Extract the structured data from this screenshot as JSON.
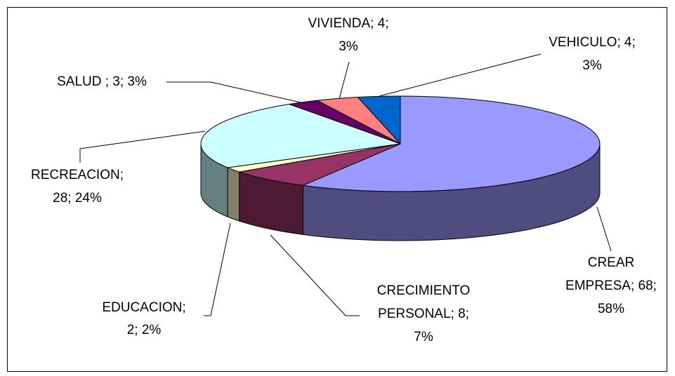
{
  "chart_data": {
    "type": "pie3d",
    "values": [
      68,
      8,
      2,
      28,
      3,
      4,
      4
    ],
    "value_labels": [
      [
        "CREAR",
        "EMPRESA; 68;",
        "58%"
      ],
      [
        "CRECIMIENTO",
        "PERSONAL; 8;",
        "7%"
      ],
      [
        "EDUCACION;",
        "2; 2%"
      ],
      [
        "RECREACION;",
        "28; 24%"
      ],
      [
        "SALUD ; 3; 3%"
      ],
      [
        "VIVIENDA; 4;",
        "3%"
      ],
      [
        "VEHICULO; 4;",
        "3%"
      ]
    ],
    "colors": [
      "#9999ff",
      "#993366",
      "#ffffcc",
      "#ccffff",
      "#660066",
      "#ff8080",
      "#0066cc"
    ]
  }
}
